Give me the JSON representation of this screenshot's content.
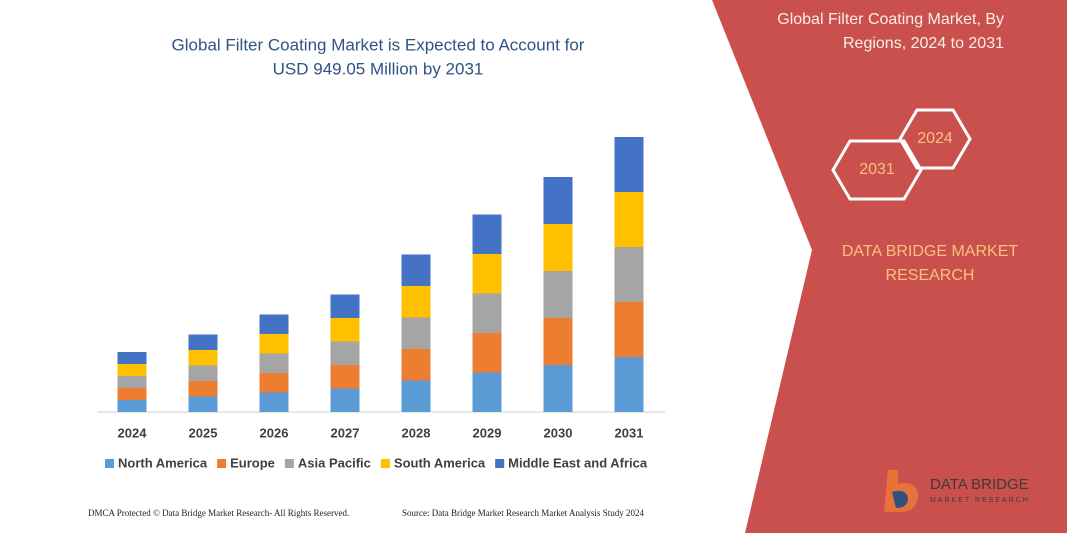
{
  "chart_data": {
    "type": "bar",
    "stacked": true,
    "title": [
      "Global Filter Coating Market is Expected to Account for",
      "USD 949.05 Million by 2031"
    ],
    "categories": [
      "2024",
      "2025",
      "2026",
      "2027",
      "2028",
      "2029",
      "2030",
      "2031"
    ],
    "series": [
      {
        "name": "North America",
        "color": "#5b9bd5",
        "values": [
          12,
          15.5,
          19.5,
          23.5,
          31.5,
          39.5,
          47,
          55
        ]
      },
      {
        "name": "Europe",
        "color": "#ed7d31",
        "values": [
          12,
          15.5,
          19.5,
          23.5,
          31.5,
          39.5,
          47,
          55
        ]
      },
      {
        "name": "Asia Pacific",
        "color": "#a5a5a5",
        "values": [
          12,
          15.5,
          19.5,
          23.5,
          31.5,
          39.5,
          47,
          55
        ]
      },
      {
        "name": "South America",
        "color": "#ffc000",
        "values": [
          12,
          15.5,
          19.5,
          23.5,
          31.5,
          39.5,
          47,
          55
        ]
      },
      {
        "name": "Middle East and Africa",
        "color": "#4472c4",
        "values": [
          12,
          15.5,
          19.5,
          23.5,
          31.5,
          39.5,
          47,
          55
        ]
      }
    ]
  },
  "side_panel": {
    "title": [
      "Global Filter Coating Market, By",
      "Regions, 2024 to 2031"
    ],
    "hex_labels": [
      "2024",
      "2031"
    ],
    "brand": [
      "DATA BRIDGE MARKET",
      "RESEARCH"
    ]
  },
  "footer": {
    "left": "DMCA Protected © Data Bridge Market Research-  All Rights Reserved.",
    "right": "Source: Data Bridge Market Research  Market Analysis Study 2024"
  },
  "logo": {
    "text": "DATA BRIDGE",
    "subtext": "MARKET RESEARCH"
  }
}
